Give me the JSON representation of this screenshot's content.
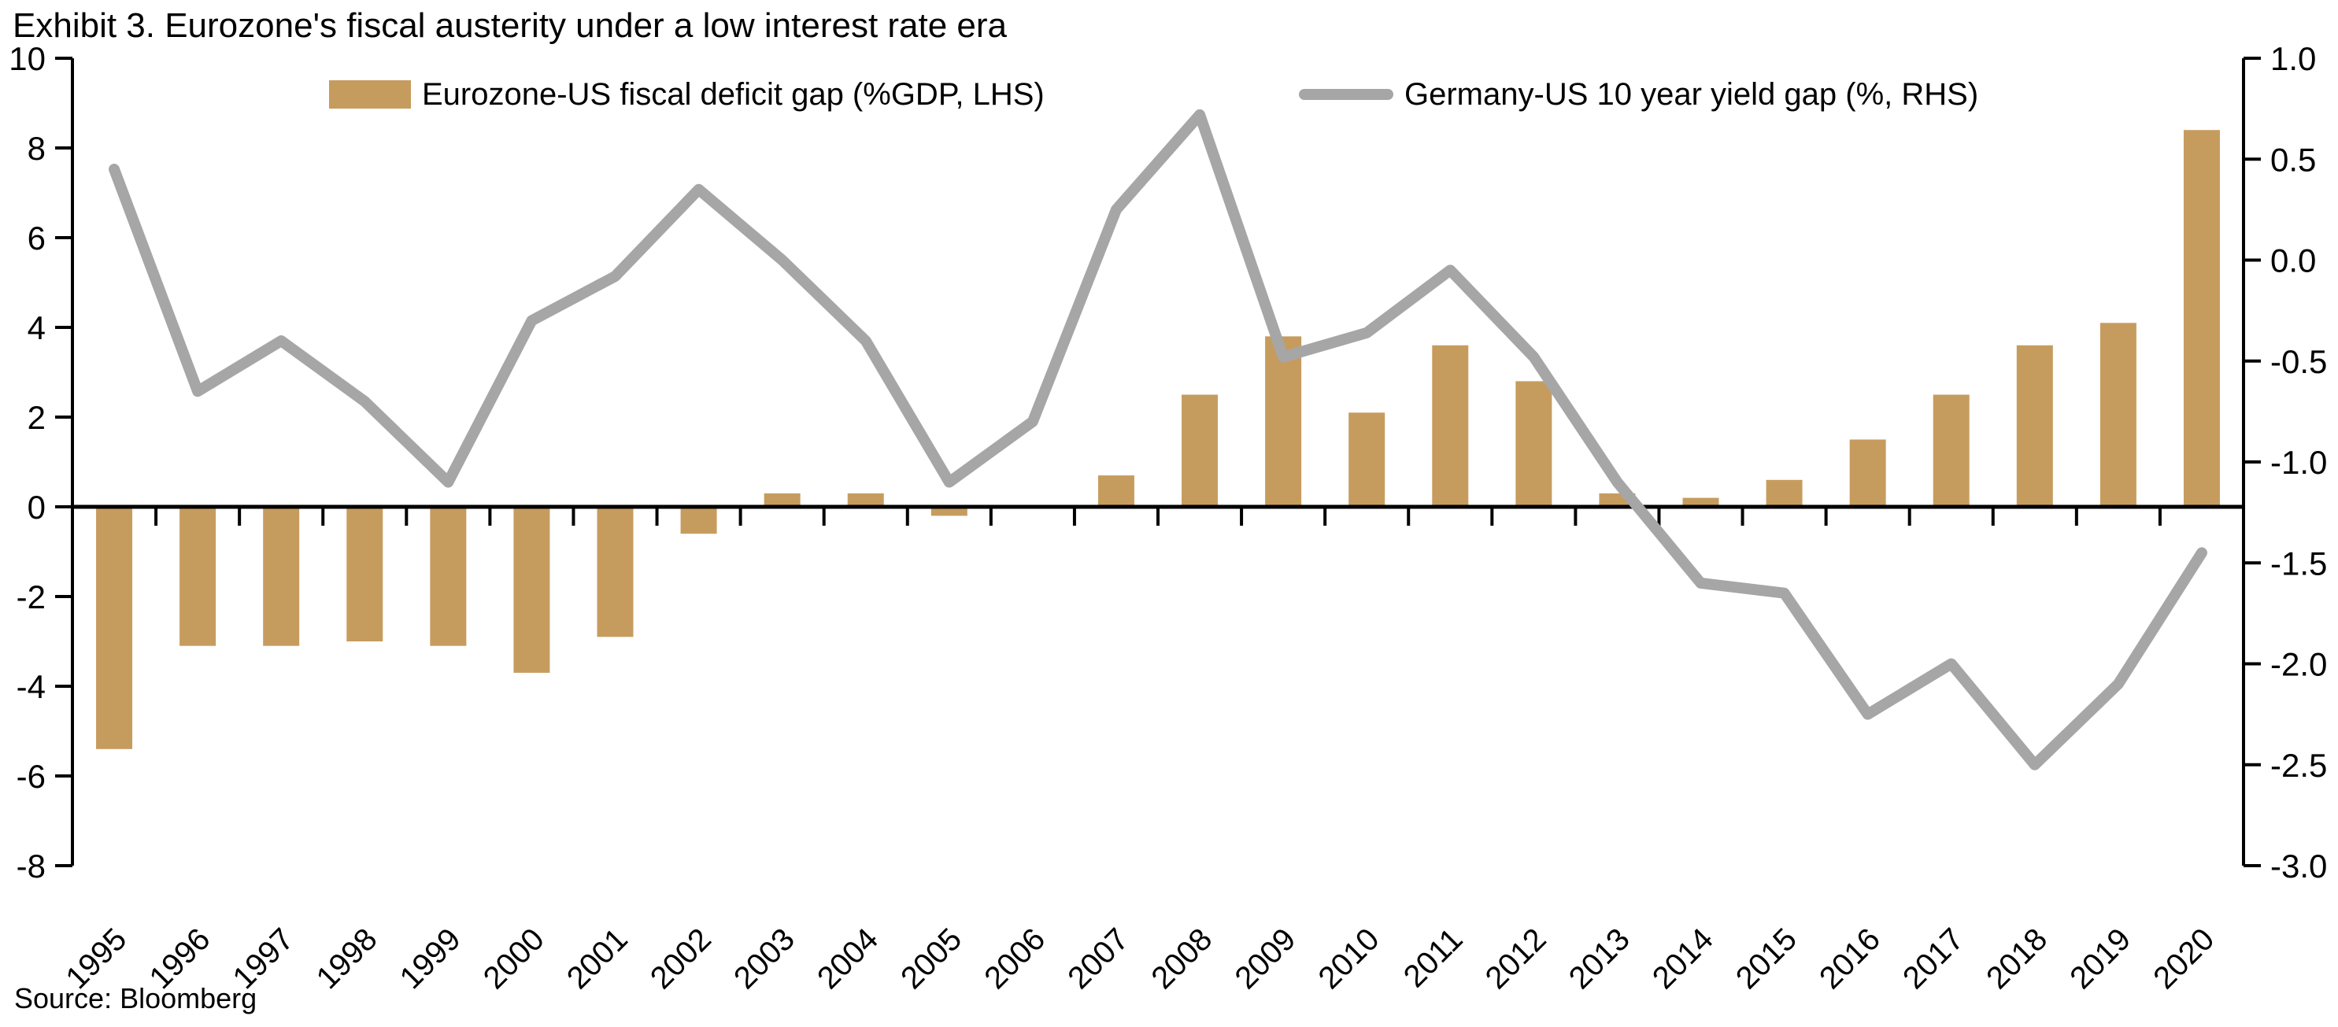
{
  "title": "Exhibit 3. Eurozone's fiscal austerity under a low interest rate era",
  "source": "Source: Bloomberg",
  "colors": {
    "bar": "#C69C5E",
    "line": "#A6A6A6",
    "axis": "#000000",
    "background": "#FFFFFF"
  },
  "legend": {
    "bar_label": "Eurozone-US fiscal deficit gap (%GDP, LHS)",
    "line_label": "Germany-US 10 year yield gap (%, RHS)"
  },
  "chart_data": {
    "type": "bar",
    "subtype": "bar+line dual axis",
    "title": "Exhibit 3. Eurozone's fiscal austerity under a low interest rate era",
    "xlabel": "",
    "ylabel_left": "Eurozone-US fiscal deficit gap (%GDP)",
    "ylabel_right": "Germany-US 10 year yield gap (%)",
    "grid": false,
    "legend_position": "top",
    "categories": [
      "1995",
      "1996",
      "1997",
      "1998",
      "1999",
      "2000",
      "2001",
      "2002",
      "2003",
      "2004",
      "2005",
      "2006",
      "2007",
      "2008",
      "2009",
      "2010",
      "2011",
      "2012",
      "2013",
      "2014",
      "2015",
      "2016",
      "2017",
      "2018",
      "2019",
      "2020"
    ],
    "series": [
      {
        "name": "Eurozone-US fiscal deficit gap (%GDP, LHS)",
        "type": "bar",
        "axis": "left",
        "color": "#C69C5E",
        "values": [
          -5.4,
          -3.1,
          -3.1,
          -3.0,
          -3.1,
          -3.7,
          -2.9,
          -0.6,
          0.3,
          0.3,
          -0.2,
          0.0,
          0.7,
          2.5,
          3.8,
          2.1,
          3.6,
          2.8,
          0.3,
          0.2,
          0.6,
          1.5,
          2.5,
          3.6,
          4.1,
          8.4
        ]
      },
      {
        "name": "Germany-US 10 year yield gap (%, RHS)",
        "type": "line",
        "axis": "right",
        "color": "#A6A6A6",
        "values": [
          0.45,
          -0.65,
          -0.4,
          -0.7,
          -1.1,
          -0.3,
          -0.08,
          0.35,
          0.0,
          -0.4,
          -1.1,
          -0.8,
          0.25,
          0.72,
          -0.48,
          -0.36,
          -0.05,
          -0.48,
          -1.1,
          -1.6,
          -1.65,
          -2.25,
          -2.0,
          -2.5,
          -2.1,
          -1.45
        ]
      }
    ],
    "left_axis": {
      "min": -8,
      "max": 10,
      "step": 2,
      "labels": [
        "10",
        "8",
        "6",
        "4",
        "2",
        "0",
        "-2",
        "-4",
        "-6",
        "-8"
      ]
    },
    "right_axis": {
      "min": -3,
      "max": 1,
      "step": 0.5,
      "labels": [
        "1.0",
        "0.5",
        "0.0",
        "-0.5",
        "-1.0",
        "-1.5",
        "-2.0",
        "-2.5",
        "-3.0"
      ]
    }
  }
}
